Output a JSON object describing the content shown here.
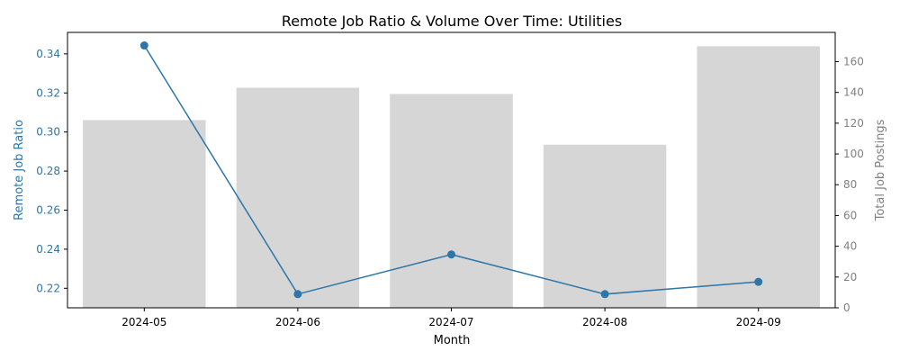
{
  "chart_data": {
    "type": "bar+line",
    "title": "Remote Job Ratio & Volume Over Time: Utilities",
    "xlabel": "Month",
    "categories": [
      "2024-05",
      "2024-06",
      "2024-07",
      "2024-08",
      "2024-09"
    ],
    "left_axis": {
      "label": "Remote Job Ratio",
      "ylim": [
        0.21,
        0.351
      ],
      "ticks": [
        "0.22",
        "0.24",
        "0.26",
        "0.28",
        "0.30",
        "0.32",
        "0.34"
      ],
      "color": "#2e75a8"
    },
    "right_axis": {
      "label": "Total Job Postings",
      "ylim": [
        0,
        179
      ],
      "ticks": [
        "0",
        "20",
        "40",
        "60",
        "80",
        "100",
        "120",
        "140",
        "160"
      ],
      "color": "#808080"
    },
    "series": [
      {
        "kind": "bar",
        "axis": "right",
        "values": [
          122,
          143,
          139,
          106,
          170
        ],
        "color": "#d6d6d6"
      },
      {
        "kind": "line",
        "axis": "left",
        "values": [
          0.3443,
          0.217,
          0.2373,
          0.217,
          0.2233
        ],
        "color": "#2e75a8"
      }
    ],
    "grid": false,
    "legend": "none"
  }
}
